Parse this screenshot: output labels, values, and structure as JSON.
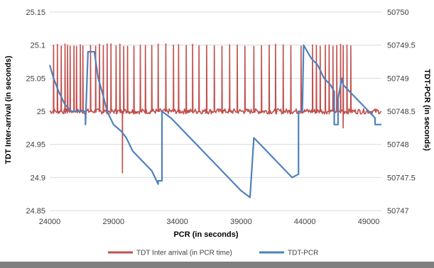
{
  "chart_data": {
    "type": "line",
    "title": "",
    "xlabel": "PCR (in seconds)",
    "ylabel_left": "TDT Inter-arrival (in seconds)",
    "ylabel_right": "TDT-PCR (in seconds)",
    "xlim": [
      24000,
      50000
    ],
    "ylim_left": [
      24.85,
      25.15
    ],
    "ylim_right": [
      50747,
      50750
    ],
    "x_ticks": [
      "24000",
      "29000",
      "34000",
      "39000",
      "44000",
      "49000"
    ],
    "y_ticks_left": [
      "24.85",
      "24.9",
      "24.95",
      "25",
      "25.05",
      "25.1",
      "25.15"
    ],
    "y_ticks_right": [
      "50747",
      "50747.5",
      "50748",
      "50748.5",
      "50749",
      "50749.5",
      "50750"
    ],
    "grid": "horizontal",
    "legend_position": "bottom",
    "series": [
      {
        "name": "TDT Inter arrival (in PCR time)",
        "axis": "left",
        "color": "#c0504d",
        "spikes_x": [
          24300,
          24600,
          24900,
          25200,
          25400,
          25600,
          25900,
          26100,
          26400,
          26600,
          27200,
          27600,
          27900,
          28200,
          28500,
          28800,
          29200,
          29500,
          29800,
          30100,
          30600,
          31100,
          31500,
          32000,
          32500,
          33100,
          33700,
          34100,
          34700,
          35200,
          35700,
          36300,
          36900,
          37500,
          38100,
          38700,
          39300,
          40000,
          40600,
          41200,
          41700,
          42300,
          42900,
          43700,
          44600,
          44900,
          45200,
          45600,
          45900,
          46200,
          46500,
          46800,
          47000,
          47300,
          47600
        ],
        "spike_peak": 25.1,
        "dips": [
          {
            "x": 29700,
            "y": 24.907
          },
          {
            "x": 47000,
            "y": 24.975
          }
        ],
        "baseline": 25.0
      },
      {
        "name": "TDT-PCR",
        "axis": "right",
        "color": "#4f81bd",
        "x": [
          24000,
          24300,
          24700,
          25200,
          25700,
          26300,
          26800,
          26800,
          27000,
          27500,
          27800,
          28100,
          28500,
          29000,
          29600,
          30000,
          30500,
          31000,
          31500,
          32000,
          32500,
          32500,
          32800,
          32800,
          33500,
          34000,
          34500,
          35000,
          35500,
          36000,
          36500,
          37000,
          37500,
          38000,
          38500,
          39000,
          39700,
          39700,
          40000,
          40500,
          41000,
          41500,
          42000,
          42500,
          43000,
          43500,
          43500,
          43800,
          43900,
          44200,
          44500,
          45000,
          45500,
          46000,
          46300,
          46300,
          46600,
          46600,
          46900,
          47000,
          47500,
          48000,
          48500,
          49000,
          49500,
          49500,
          50000
        ],
        "y": [
          50749.2,
          50749.0,
          50748.8,
          50748.6,
          50748.5,
          50748.5,
          50748.5,
          50748.3,
          50749.4,
          50749.4,
          50749.0,
          50748.8,
          50748.5,
          50748.3,
          50748.2,
          50748.1,
          50747.9,
          50747.8,
          50747.7,
          50747.6,
          50747.4,
          50747.45,
          50747.45,
          50748.5,
          50748.4,
          50748.3,
          50748.2,
          50748.1,
          50748.0,
          50747.9,
          50747.8,
          50747.7,
          50747.6,
          50747.5,
          50747.4,
          50747.3,
          50747.2,
          50747.2,
          50748.1,
          50748.0,
          50747.9,
          50747.8,
          50747.7,
          50747.6,
          50747.5,
          50747.55,
          50748.5,
          50748.5,
          50749.5,
          50749.4,
          50749.3,
          50749.2,
          50749.0,
          50748.9,
          50748.8,
          50748.3,
          50748.3,
          50748.7,
          50749.0,
          50748.9,
          50748.8,
          50748.7,
          50748.6,
          50748.5,
          50748.4,
          50748.3,
          50748.3
        ]
      }
    ]
  }
}
